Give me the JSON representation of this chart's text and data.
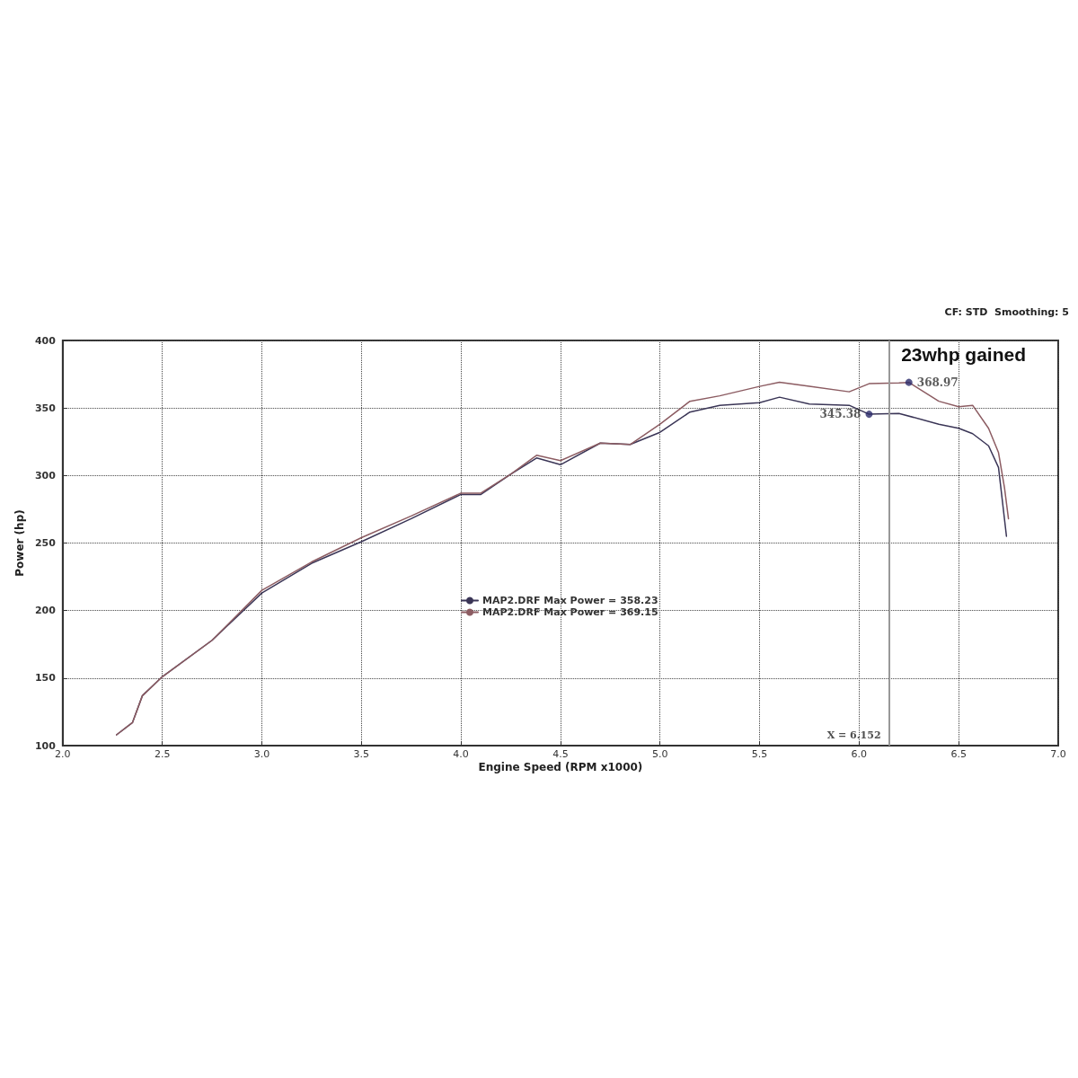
{
  "chart_data": {
    "type": "line",
    "xlabel": "Engine Speed (RPM x1000)",
    "ylabel": "Power (hp)",
    "annotations": [
      "CF: STD  Smoothing: 5",
      "23whp gained",
      {
        "text": "345.38",
        "x": 6.05,
        "y": 345.38
      },
      {
        "text": "368.97",
        "x": 6.25,
        "y": 368.97
      }
    ],
    "series": [
      {
        "name": "MAP2.DRF Max Power = 358.23",
        "color": "#3a3556",
        "x": [
          2.27,
          2.35,
          2.4,
          2.5,
          2.75,
          3.0,
          3.25,
          3.5,
          3.75,
          4.0,
          4.1,
          4.25,
          4.38,
          4.5,
          4.7,
          4.85,
          5.0,
          5.15,
          5.3,
          5.5,
          5.6,
          5.75,
          5.95,
          6.05,
          6.2,
          6.4,
          6.5,
          6.57,
          6.65,
          6.7,
          6.74
        ],
        "values": [
          108,
          117,
          137,
          151,
          178,
          213,
          235,
          251,
          268,
          286,
          286,
          301,
          313,
          308,
          324,
          323,
          332,
          347,
          352,
          354,
          358,
          353,
          352,
          345.38,
          346,
          338,
          335,
          331,
          322,
          306,
          255
        ]
      },
      {
        "name": "MAP2.DRF Max Power = 369.15",
        "color": "#8c5c62",
        "x": [
          2.27,
          2.35,
          2.4,
          2.5,
          2.75,
          3.0,
          3.25,
          3.5,
          3.75,
          4.0,
          4.1,
          4.25,
          4.38,
          4.5,
          4.7,
          4.85,
          5.0,
          5.15,
          5.3,
          5.5,
          5.6,
          5.75,
          5.95,
          6.05,
          6.2,
          6.25,
          6.4,
          6.5,
          6.57,
          6.65,
          6.7,
          6.73,
          6.75
        ],
        "values": [
          108,
          117,
          137,
          151,
          178,
          215,
          236,
          254,
          270,
          287,
          287,
          301,
          315,
          311,
          324,
          323,
          338,
          355,
          359,
          366,
          369,
          366,
          362,
          368,
          368.5,
          368.97,
          355,
          351,
          352,
          335,
          317,
          291,
          268
        ]
      }
    ],
    "xlim": [
      2,
      7
    ],
    "xticks": [
      {
        "value": 2,
        "label": "2.0"
      },
      {
        "value": 2.5,
        "label": "2.5"
      },
      {
        "value": 3,
        "label": "3.0"
      },
      {
        "value": 3.5,
        "label": "3.5"
      },
      {
        "value": 4,
        "label": "4.0"
      },
      {
        "value": 4.5,
        "label": "4.5"
      },
      {
        "value": 5,
        "label": "5.0"
      },
      {
        "value": 5.5,
        "label": "5.5"
      },
      {
        "value": 6,
        "label": "6.0"
      },
      {
        "value": 6.5,
        "label": "6.5"
      },
      {
        "value": 7,
        "label": "7.0"
      }
    ],
    "ylim": [
      100,
      400
    ],
    "yticks": [
      100,
      150,
      200,
      250,
      300,
      350,
      400
    ],
    "ref_lines": [
      {
        "axis": "x",
        "value": 6.152,
        "label": "X = 6.152",
        "color": "#999999"
      }
    ],
    "grid": true,
    "legend": "center",
    "marker": "none",
    "line_style": "solid"
  }
}
